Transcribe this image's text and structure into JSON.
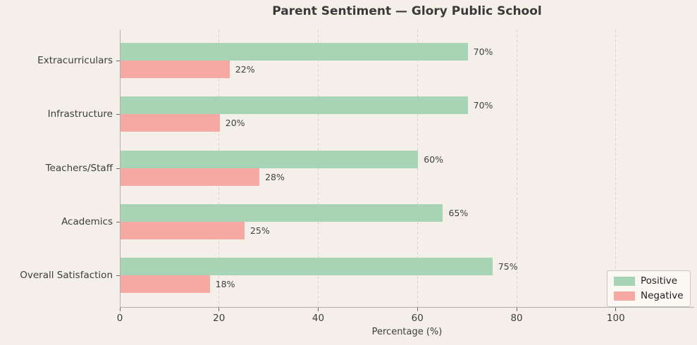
{
  "chart_data": {
    "type": "bar",
    "orientation": "horizontal",
    "title": "Parent Sentiment — Glory Public School",
    "xlabel": "Percentage (%)",
    "categories": [
      "Extracurriculars",
      "Infrastructure",
      "Teachers/Staff",
      "Academics",
      "Overall Satisfaction"
    ],
    "series": [
      {
        "name": "Positive",
        "color": "#a8d4b6",
        "values": [
          70,
          70,
          60,
          65,
          75
        ]
      },
      {
        "name": "Negative",
        "color": "#f6a8a2",
        "values": [
          22,
          20,
          28,
          25,
          18
        ]
      }
    ],
    "value_suffix": "%",
    "x_ticks": [
      0,
      20,
      40,
      60,
      80,
      100
    ],
    "xlim": [
      0,
      115.8
    ],
    "grid": "vertical-dashed",
    "legend_position": "lower-right"
  },
  "style_colors": {
    "background": "#f4efe9",
    "grid": "#d8d3cd",
    "spine": "#b3aea8",
    "text": "#3d3d3d",
    "legend_bg": "#fbf7f2",
    "legend_border": "#c9c5c0"
  }
}
